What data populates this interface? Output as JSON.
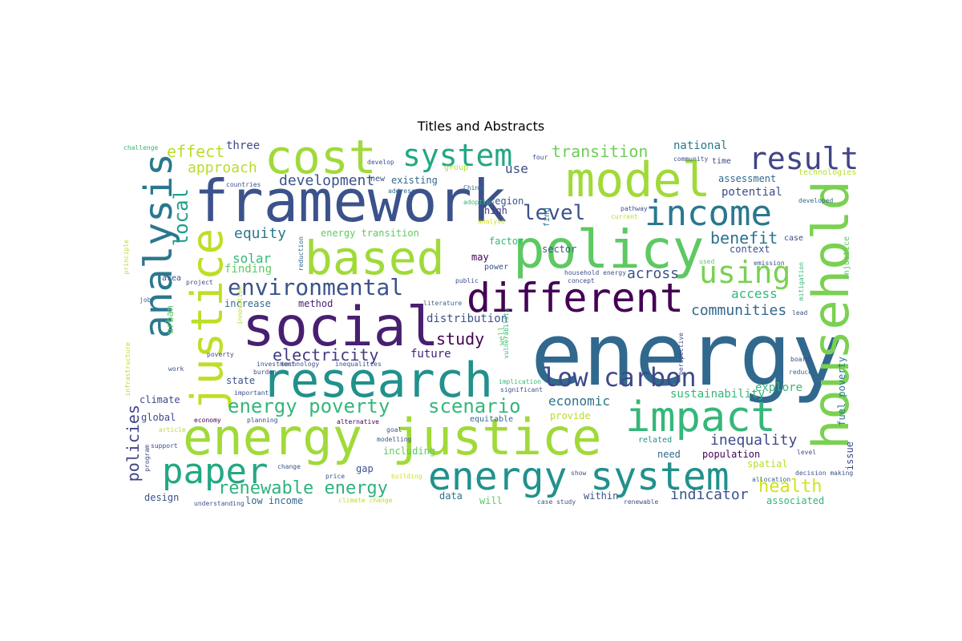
{
  "title": "Titles and Abstracts",
  "words": [
    {
      "text": "energy",
      "color": "#31688e"
    },
    {
      "text": "framework",
      "color": "#3b528b"
    },
    {
      "text": "social",
      "color": "#481f70"
    },
    {
      "text": "energy justice",
      "color": "#a0da39"
    },
    {
      "text": "policy",
      "color": "#5ec962"
    },
    {
      "text": "research",
      "color": "#21918c"
    },
    {
      "text": "based",
      "color": "#a0da39"
    },
    {
      "text": "household",
      "color": "#7ad151"
    },
    {
      "text": "model",
      "color": "#a0da39"
    },
    {
      "text": "cost",
      "color": "#a0da39"
    },
    {
      "text": "justice",
      "color": "#bddf26"
    },
    {
      "text": "analysis",
      "color": "#2a788e"
    },
    {
      "text": "impact",
      "color": "#35b779"
    },
    {
      "text": "different",
      "color": "#440154"
    },
    {
      "text": "energy system",
      "color": "#21918c"
    },
    {
      "text": "income",
      "color": "#2a788e"
    },
    {
      "text": "paper",
      "color": "#23a884"
    },
    {
      "text": "result",
      "color": "#414487"
    },
    {
      "text": "system",
      "color": "#22a884"
    },
    {
      "text": "low carbon",
      "color": "#3e4a89"
    },
    {
      "text": "using",
      "color": "#7ad151"
    },
    {
      "text": "environmental",
      "color": "#3b528b"
    },
    {
      "text": "energy poverty",
      "color": "#35b779"
    },
    {
      "text": "scenario",
      "color": "#35b779"
    },
    {
      "text": "renewable energy",
      "color": "#2db27d"
    },
    {
      "text": "level",
      "color": "#3b528b"
    },
    {
      "text": "electricity",
      "color": "#443983"
    },
    {
      "text": "health",
      "color": "#d2e21b"
    },
    {
      "text": "transition",
      "color": "#6ece58"
    },
    {
      "text": "development",
      "color": "#3b528b"
    },
    {
      "text": "benefit",
      "color": "#2c728e"
    },
    {
      "text": "equity",
      "color": "#2a788e"
    },
    {
      "text": "study",
      "color": "#440154"
    },
    {
      "text": "communities",
      "color": "#31688e"
    },
    {
      "text": "inequality",
      "color": "#3e4a89"
    },
    {
      "text": "approach",
      "color": "#b8de29"
    },
    {
      "text": "local",
      "color": "#1f9e89"
    },
    {
      "text": "across",
      "color": "#3b528b"
    },
    {
      "text": "effect",
      "color": "#b8de29"
    },
    {
      "text": "policies",
      "color": "#414487"
    },
    {
      "text": "indicator",
      "color": "#3b528b"
    },
    {
      "text": "economic",
      "color": "#2c728e"
    },
    {
      "text": "solar",
      "color": "#35b779"
    },
    {
      "text": "access",
      "color": "#35b779"
    },
    {
      "text": "use",
      "color": "#3e4a89"
    },
    {
      "text": "three",
      "color": "#3e4a89"
    },
    {
      "text": "national",
      "color": "#2a788e"
    },
    {
      "text": "finding",
      "color": "#5ec962"
    },
    {
      "text": "energy transition",
      "color": "#5ec962"
    },
    {
      "text": "distribution",
      "color": "#3b528b"
    },
    {
      "text": "future",
      "color": "#481f70"
    },
    {
      "text": "potential",
      "color": "#3e4a89"
    },
    {
      "text": "assessment",
      "color": "#31688e"
    },
    {
      "text": "sustainability",
      "color": "#35b779"
    },
    {
      "text": "explore",
      "color": "#35b779"
    },
    {
      "text": "region",
      "color": "#3b528b"
    },
    {
      "text": "sector",
      "color": "#3b528b"
    },
    {
      "text": "high",
      "color": "#443983"
    },
    {
      "text": "increase",
      "color": "#31688e"
    },
    {
      "text": "method",
      "color": "#481f70"
    },
    {
      "text": "spatial",
      "color": "#b8de29"
    },
    {
      "text": "associated",
      "color": "#35b779"
    },
    {
      "text": "fuel poverty",
      "color": "#2a788e"
    },
    {
      "text": "technologies",
      "color": "#b8de29"
    },
    {
      "text": "context",
      "color": "#3b528b"
    },
    {
      "text": "factor",
      "color": "#35b779"
    },
    {
      "text": "may",
      "color": "#440154"
    },
    {
      "text": "provide",
      "color": "#b8de29"
    },
    {
      "text": "global",
      "color": "#3e4a89"
    },
    {
      "text": "climate",
      "color": "#3e4a89"
    },
    {
      "text": "state",
      "color": "#3b528b"
    },
    {
      "text": "population",
      "color": "#440154"
    },
    {
      "text": "need",
      "color": "#31688e"
    },
    {
      "text": "within",
      "color": "#3b528b"
    },
    {
      "text": "will",
      "color": "#5ec962"
    },
    {
      "text": "data",
      "color": "#2c728e"
    },
    {
      "text": "low income",
      "color": "#31688e"
    },
    {
      "text": "design",
      "color": "#3b528b"
    },
    {
      "text": "issue",
      "color": "#3e4a89"
    },
    {
      "text": "urban",
      "color": "#5ec962"
    },
    {
      "text": "including",
      "color": "#5ec962"
    },
    {
      "text": "gap",
      "color": "#3b528b"
    },
    {
      "text": "existing",
      "color": "#31688e"
    },
    {
      "text": "new",
      "color": "#3b528b"
    },
    {
      "text": "find",
      "color": "#2c728e"
    },
    {
      "text": "case",
      "color": "#3e4a89"
    },
    {
      "text": "time",
      "color": "#3e4a89"
    },
    {
      "text": "injustice",
      "color": "#5ec962"
    },
    {
      "text": "well",
      "color": "#5ec962"
    },
    {
      "text": "related",
      "color": "#21918c"
    },
    {
      "text": "equitable",
      "color": "#31688e"
    },
    {
      "text": "group",
      "color": "#b8de29"
    },
    {
      "text": "four",
      "color": "#3e4a89"
    },
    {
      "text": "develop",
      "color": "#3b528b"
    },
    {
      "text": "challenge",
      "color": "#35b779"
    },
    {
      "text": "countries",
      "color": "#3b528b"
    },
    {
      "text": "address",
      "color": "#31688e"
    },
    {
      "text": "China",
      "color": "#31688e"
    },
    {
      "text": "adoption",
      "color": "#35b779"
    },
    {
      "text": "analyse",
      "color": "#d2e21b"
    },
    {
      "text": "current",
      "color": "#b8de29"
    },
    {
      "text": "developed",
      "color": "#31688e"
    },
    {
      "text": "community",
      "color": "#3b528b"
    },
    {
      "text": "pathway",
      "color": "#3b528b"
    },
    {
      "text": "lead",
      "color": "#3b528b"
    },
    {
      "text": "used",
      "color": "#5ec962"
    },
    {
      "text": "emission",
      "color": "#3b528b"
    },
    {
      "text": "concept",
      "color": "#3e4a89"
    },
    {
      "text": "household energy",
      "color": "#3b528b"
    },
    {
      "text": "power",
      "color": "#3b528b"
    },
    {
      "text": "public",
      "color": "#3b528b"
    },
    {
      "text": "literature",
      "color": "#31688e"
    },
    {
      "text": "area",
      "color": "#3b528b"
    },
    {
      "text": "project",
      "color": "#3e4a89"
    },
    {
      "text": "reduction",
      "color": "#31688e"
    },
    {
      "text": "infrastructure",
      "color": "#b8de29"
    },
    {
      "text": "job",
      "color": "#31688e"
    },
    {
      "text": "implication",
      "color": "#35b779"
    },
    {
      "text": "significant",
      "color": "#3b528b"
    },
    {
      "text": "inequalities",
      "color": "#3b528b"
    },
    {
      "text": "investment",
      "color": "#3b528b"
    },
    {
      "text": "technology",
      "color": "#3b528b"
    },
    {
      "text": "important",
      "color": "#3b528b"
    },
    {
      "text": "economy",
      "color": "#440154"
    },
    {
      "text": "planning",
      "color": "#3e4a89"
    },
    {
      "text": "alternative",
      "color": "#440154"
    },
    {
      "text": "goal",
      "color": "#3b528b"
    },
    {
      "text": "modelling",
      "color": "#3b528b"
    },
    {
      "text": "building",
      "color": "#d2e21b"
    },
    {
      "text": "price",
      "color": "#3b528b"
    },
    {
      "text": "understanding",
      "color": "#3b528b"
    },
    {
      "text": "climate change",
      "color": "#b8de29"
    },
    {
      "text": "case study",
      "color": "#3b528b"
    },
    {
      "text": "renewable",
      "color": "#3b528b"
    },
    {
      "text": "show",
      "color": "#3b528b"
    },
    {
      "text": "allocation",
      "color": "#31688e"
    },
    {
      "text": "decision making",
      "color": "#3b528b"
    },
    {
      "text": "reduce",
      "color": "#31688e"
    },
    {
      "text": "board",
      "color": "#3b528b"
    },
    {
      "text": "level",
      "color": "#3e4a89"
    },
    {
      "text": "vulnerability",
      "color": "#35b779"
    },
    {
      "text": "article",
      "color": "#b8de29"
    },
    {
      "text": "program",
      "color": "#3e4a89"
    },
    {
      "text": "support",
      "color": "#3e4a89"
    },
    {
      "text": "principle",
      "color": "#b8de29"
    },
    {
      "text": "change",
      "color": "#3b528b"
    },
    {
      "text": "work",
      "color": "#3b528b"
    },
    {
      "text": "perspective",
      "color": "#3e4a89"
    },
    {
      "text": "mitigation",
      "color": "#35b779"
    },
    {
      "text": "innovation",
      "color": "#b8de29"
    },
    {
      "text": "burden",
      "color": "#3b528b"
    },
    {
      "text": "poverty",
      "color": "#3e4a89"
    }
  ]
}
